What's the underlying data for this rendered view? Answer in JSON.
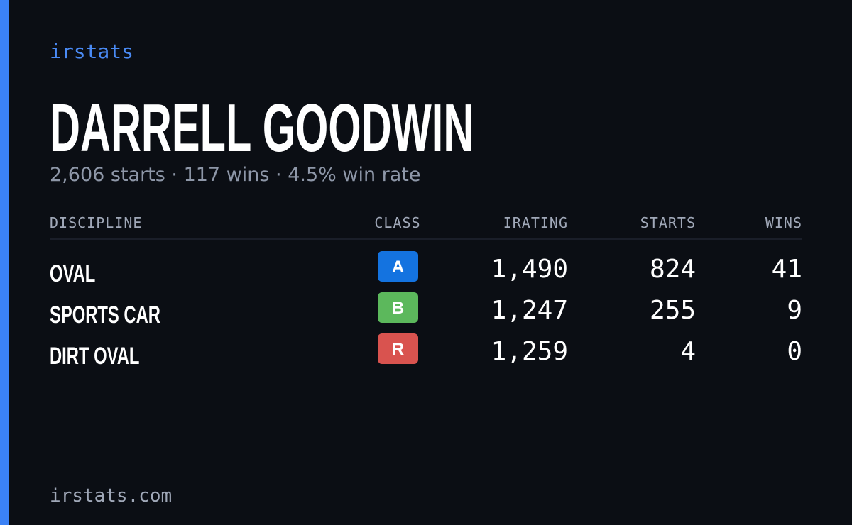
{
  "brand": "irstats",
  "driver": {
    "name": "DARRELL GOODWIN",
    "summary": "2,606 starts · 117 wins · 4.5% win rate"
  },
  "table": {
    "columns": [
      "DISCIPLINE",
      "CLASS",
      "IRATING",
      "STARTS",
      "WINS"
    ],
    "rows": [
      {
        "discipline": "OVAL",
        "class": "A",
        "class_color": "#1473e0",
        "irating": "1,490",
        "starts": "824",
        "wins": "41"
      },
      {
        "discipline": "SPORTS CAR",
        "class": "B",
        "class_color": "#5cb85c",
        "irating": "1,247",
        "starts": "255",
        "wins": "9"
      },
      {
        "discipline": "DIRT OVAL",
        "class": "R",
        "class_color": "#d9534f",
        "irating": "1,259",
        "starts": "4",
        "wins": "0"
      }
    ]
  },
  "footer": "irstats.com"
}
